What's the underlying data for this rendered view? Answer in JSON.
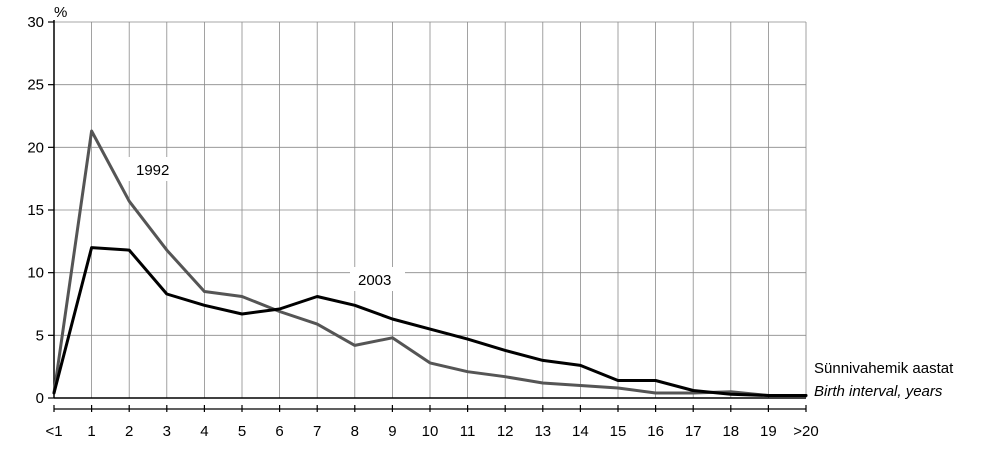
{
  "chart_data": {
    "type": "line",
    "categories": [
      "<1",
      "1",
      "2",
      "3",
      "4",
      "5",
      "6",
      "7",
      "8",
      "9",
      "10",
      "11",
      "12",
      "13",
      "14",
      "15",
      "16",
      "17",
      "18",
      "19",
      ">20"
    ],
    "ylim": [
      0,
      30
    ],
    "yticks": [
      "0",
      "5",
      "10",
      "15",
      "20",
      "25",
      "30"
    ],
    "yunit": "%",
    "xlabel": "Sünnivahemik aastat",
    "xlabel_en": "Birth interval, years",
    "grid": true,
    "series": [
      {
        "name": "1992",
        "color": "#555555",
        "values": [
          0.4,
          21.3,
          15.7,
          11.8,
          8.5,
          8.1,
          6.9,
          5.9,
          4.2,
          4.8,
          2.8,
          2.1,
          1.7,
          1.2,
          1.0,
          0.8,
          0.4,
          0.4,
          0.5,
          0.2,
          0.2
        ]
      },
      {
        "name": "2003",
        "color": "#000000",
        "values": [
          0.4,
          12.0,
          11.8,
          8.3,
          7.4,
          6.7,
          7.1,
          8.1,
          7.4,
          6.3,
          5.5,
          4.7,
          3.8,
          3.0,
          2.6,
          1.4,
          1.4,
          0.6,
          0.3,
          0.2,
          0.2
        ]
      }
    ]
  }
}
